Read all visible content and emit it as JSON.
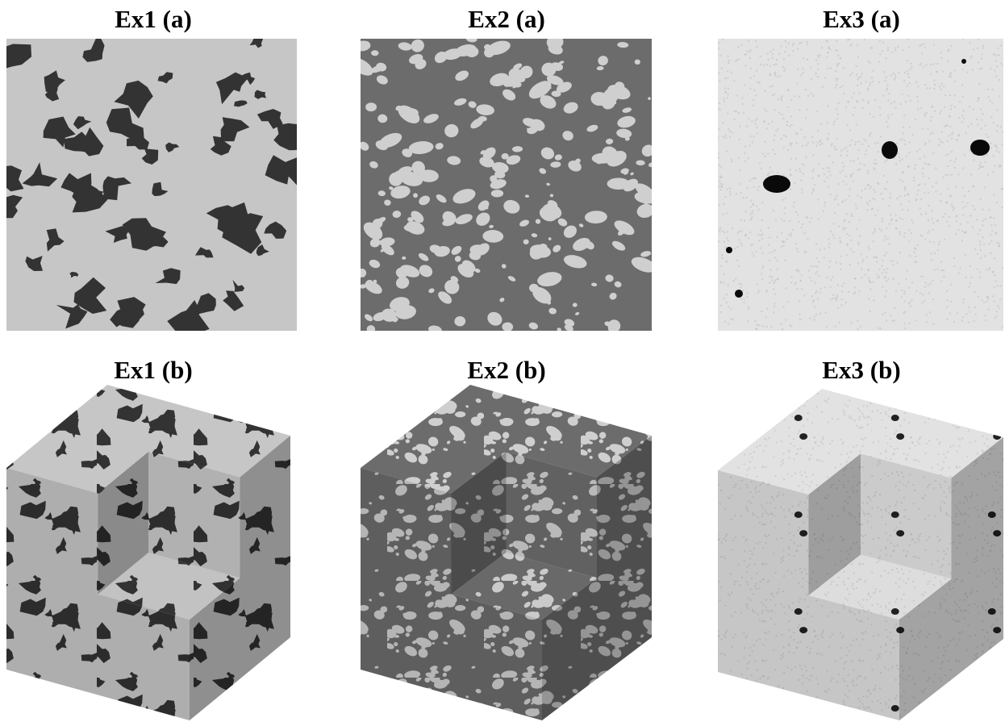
{
  "rows": [
    [
      "Ex1 (a)",
      "Ex2 (a)",
      "Ex3 (a)"
    ],
    [
      "Ex1 (b)",
      "Ex2 (b)",
      "Ex3 (b)"
    ]
  ]
}
